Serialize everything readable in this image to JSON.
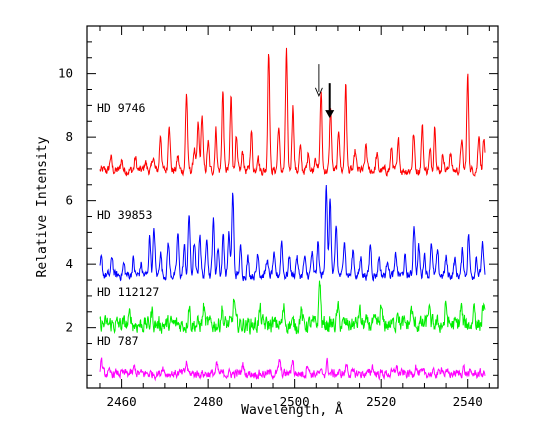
{
  "chart_data": {
    "type": "line",
    "title": "",
    "xlabel": "Wavelength, Å",
    "ylabel": "Relative Intensity",
    "xlim": [
      2452,
      2547
    ],
    "ylim": [
      0.1,
      11.5
    ],
    "xticks": [
      "2460",
      "2480",
      "2500",
      "2520",
      "2540"
    ],
    "yticks": [
      "2",
      "4",
      "6",
      "8",
      "10"
    ],
    "xtick_values": [
      2460,
      2480,
      2500,
      2520,
      2540
    ],
    "ytick_values": [
      2,
      4,
      6,
      8,
      10
    ],
    "grid": false,
    "legend": "none",
    "x_range": [
      2455,
      2544
    ],
    "series": [
      {
        "name": "HD 9746",
        "color": "#ff0000",
        "baseline": 6.95,
        "noise": 0.12,
        "peaks": [
          [
            2457.5,
            0.45
          ],
          [
            2460.0,
            0.35
          ],
          [
            2463.2,
            0.4
          ],
          [
            2465.5,
            0.3
          ],
          [
            2467.3,
            0.45
          ],
          [
            2469.0,
            1.15
          ],
          [
            2471.0,
            1.55
          ],
          [
            2473.0,
            0.45
          ],
          [
            2475.0,
            2.45
          ],
          [
            2476.8,
            0.7
          ],
          [
            2477.7,
            1.45
          ],
          [
            2478.6,
            1.75
          ],
          [
            2480.0,
            0.9
          ],
          [
            2481.8,
            1.3
          ],
          [
            2483.4,
            2.5
          ],
          [
            2485.3,
            2.3
          ],
          [
            2486.5,
            1.0
          ],
          [
            2488.0,
            0.6
          ],
          [
            2490.0,
            1.25
          ],
          [
            2491.5,
            0.5
          ],
          [
            2494.0,
            3.85
          ],
          [
            2496.3,
            1.4
          ],
          [
            2498.1,
            3.8
          ],
          [
            2499.6,
            2.05
          ],
          [
            2501.3,
            0.7
          ],
          [
            2503.2,
            0.6
          ],
          [
            2504.8,
            0.5
          ],
          [
            2506.1,
            2.45
          ],
          [
            2508.3,
            1.95
          ],
          [
            2510.2,
            1.3
          ],
          [
            2511.8,
            2.7
          ],
          [
            2514.0,
            0.6
          ],
          [
            2516.5,
            0.8
          ],
          [
            2519.0,
            0.5
          ],
          [
            2522.4,
            0.7
          ],
          [
            2524.0,
            0.9
          ],
          [
            2527.5,
            1.15
          ],
          [
            2529.5,
            1.4
          ],
          [
            2531.3,
            0.6
          ],
          [
            2532.4,
            1.45
          ],
          [
            2534.3,
            0.55
          ],
          [
            2536.0,
            0.6
          ],
          [
            2538.6,
            1.0
          ],
          [
            2540.0,
            3.0
          ],
          [
            2542.6,
            1.2
          ],
          [
            2543.7,
            1.0
          ]
        ]
      },
      {
        "name": "HD 39853",
        "color": "#0000ff",
        "baseline": 3.65,
        "noise": 0.12,
        "peaks": [
          [
            2455.3,
            0.5
          ],
          [
            2457.8,
            0.6
          ],
          [
            2460.5,
            0.35
          ],
          [
            2462.7,
            0.5
          ],
          [
            2464.5,
            0.35
          ],
          [
            2466.5,
            1.25
          ],
          [
            2467.5,
            1.45
          ],
          [
            2469.0,
            0.75
          ],
          [
            2470.8,
            1.05
          ],
          [
            2473.0,
            1.3
          ],
          [
            2474.5,
            0.9
          ],
          [
            2475.6,
            1.95
          ],
          [
            2476.8,
            1.0
          ],
          [
            2478.1,
            1.35
          ],
          [
            2479.7,
            1.3
          ],
          [
            2481.2,
            1.75
          ],
          [
            2482.3,
            0.9
          ],
          [
            2483.5,
            1.3
          ],
          [
            2484.8,
            1.35
          ],
          [
            2485.7,
            2.6
          ],
          [
            2487.5,
            0.85
          ],
          [
            2489.2,
            0.55
          ],
          [
            2491.5,
            0.75
          ],
          [
            2493.6,
            0.5
          ],
          [
            2495.2,
            0.6
          ],
          [
            2497.0,
            1.1
          ],
          [
            2498.8,
            0.6
          ],
          [
            2500.5,
            0.6
          ],
          [
            2502.3,
            0.55
          ],
          [
            2504.0,
            0.7
          ],
          [
            2505.4,
            1.0
          ],
          [
            2507.3,
            2.95
          ],
          [
            2508.2,
            2.4
          ],
          [
            2509.6,
            1.55
          ],
          [
            2511.5,
            1.2
          ],
          [
            2513.5,
            0.8
          ],
          [
            2515.3,
            0.55
          ],
          [
            2517.5,
            1.0
          ],
          [
            2519.5,
            0.6
          ],
          [
            2521.5,
            0.55
          ],
          [
            2523.4,
            0.65
          ],
          [
            2525.5,
            0.55
          ],
          [
            2527.6,
            1.65
          ],
          [
            2528.7,
            0.9
          ],
          [
            2530.0,
            0.7
          ],
          [
            2531.6,
            1.1
          ],
          [
            2533.0,
            0.7
          ],
          [
            2535.0,
            0.55
          ],
          [
            2537.0,
            0.5
          ],
          [
            2538.8,
            0.8
          ],
          [
            2540.2,
            1.3
          ],
          [
            2542.0,
            0.6
          ],
          [
            2543.4,
            1.0
          ]
        ]
      },
      {
        "name": "HD 112127",
        "color": "#00ee00",
        "baseline": 2.1,
        "noise": 0.22,
        "peaks": [
          [
            2462.0,
            0.35
          ],
          [
            2467.0,
            0.4
          ],
          [
            2475.6,
            0.65
          ],
          [
            2479.0,
            0.55
          ],
          [
            2483.2,
            0.5
          ],
          [
            2486.0,
            0.8
          ],
          [
            2492.0,
            0.45
          ],
          [
            2497.5,
            0.5
          ],
          [
            2501.5,
            0.45
          ],
          [
            2505.8,
            1.4
          ],
          [
            2510.0,
            0.5
          ],
          [
            2515.0,
            0.45
          ],
          [
            2520.0,
            0.5
          ],
          [
            2523.8,
            0.55
          ],
          [
            2527.0,
            0.5
          ],
          [
            2531.0,
            0.55
          ],
          [
            2535.0,
            0.6
          ],
          [
            2538.5,
            0.55
          ],
          [
            2541.5,
            0.65
          ],
          [
            2543.6,
            0.6
          ]
        ]
      },
      {
        "name": "HD 787",
        "color": "#ff00ff",
        "baseline": 0.55,
        "noise": 0.12,
        "peaks": [
          [
            2455.3,
            0.45
          ],
          [
            2463.0,
            0.2
          ],
          [
            2469.5,
            0.25
          ],
          [
            2475.0,
            0.35
          ],
          [
            2482.0,
            0.25
          ],
          [
            2488.0,
            0.3
          ],
          [
            2496.5,
            0.4
          ],
          [
            2499.5,
            0.45
          ],
          [
            2503.0,
            0.35
          ],
          [
            2507.5,
            0.35
          ],
          [
            2512.0,
            0.3
          ],
          [
            2518.0,
            0.25
          ],
          [
            2523.5,
            0.25
          ],
          [
            2528.0,
            0.3
          ],
          [
            2534.0,
            0.25
          ],
          [
            2539.0,
            0.2
          ]
        ]
      }
    ],
    "annotations": [
      {
        "type": "arrow",
        "style": "thin",
        "x": 2505.6,
        "y_from": 10.3,
        "y_to": 9.3
      },
      {
        "type": "arrow",
        "style": "thick",
        "x": 2508.1,
        "y_from": 9.7,
        "y_to": 8.6
      }
    ]
  }
}
